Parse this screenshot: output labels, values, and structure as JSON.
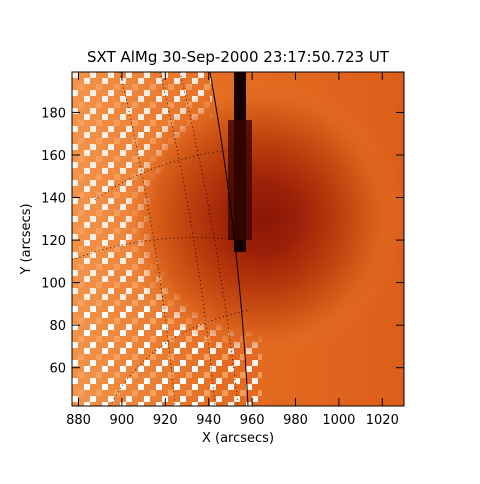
{
  "chart_data": {
    "type": "image",
    "title": "SXT AlMg 30-Sep-2000 23:17:50.723 UT",
    "x_label": "X (arcsecs)",
    "y_label": "Y (arcsecs)",
    "xlim": [
      877,
      1030
    ],
    "ylim": [
      42,
      199
    ],
    "xticks": [
      880,
      900,
      920,
      940,
      960,
      980,
      1000,
      1020
    ],
    "yticks": [
      60,
      80,
      100,
      120,
      140,
      160,
      180
    ]
  }
}
